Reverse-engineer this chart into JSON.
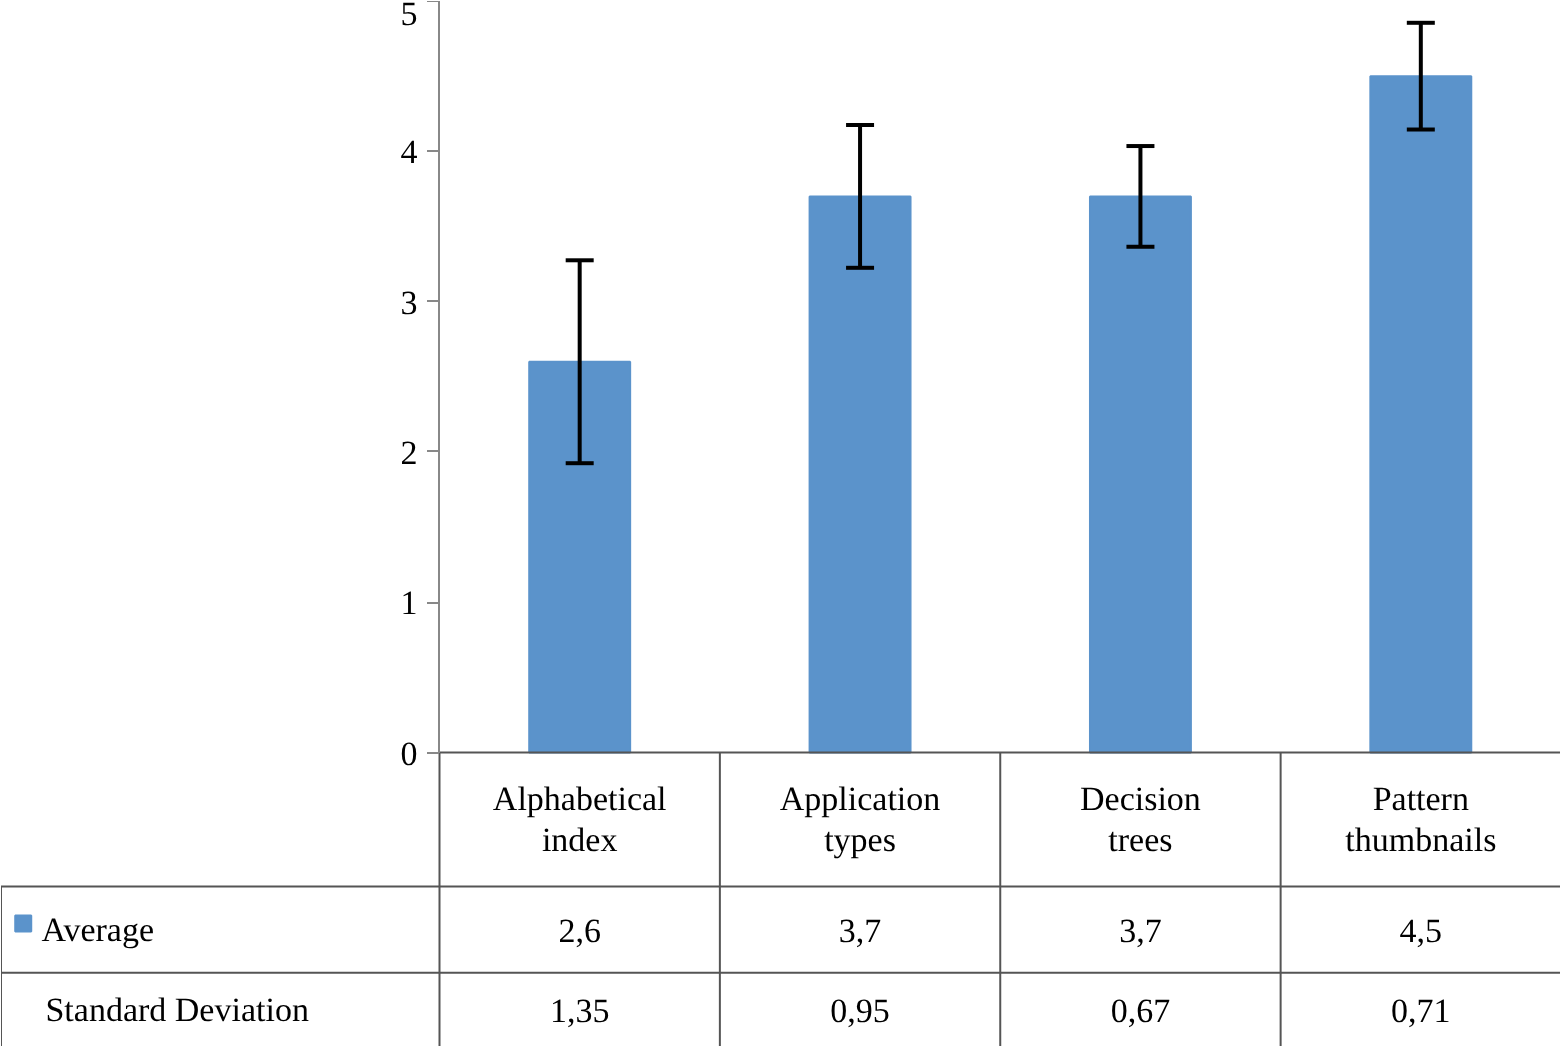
{
  "chart_data": {
    "type": "bar",
    "categories": [
      "Alphabetical index",
      "Application types",
      "Decision trees",
      "Pattern thumbnails"
    ],
    "series": [
      {
        "name": "Average",
        "color": "#5b93cb",
        "values": [
          2.6,
          3.7,
          3.7,
          4.5
        ],
        "errors": [
          0.675,
          0.475,
          0.335,
          0.355
        ],
        "value_labels": [
          "2,6",
          "3,7",
          "3,7",
          "4,5"
        ]
      }
    ],
    "ylim": [
      0,
      5
    ],
    "yticks": [
      0,
      1,
      2,
      3,
      4,
      5
    ],
    "grid": false,
    "legend": "bottom",
    "annotations": [
      "Standard Deviation",
      "1,35",
      "0,95",
      "0,67",
      "0,71"
    ]
  }
}
